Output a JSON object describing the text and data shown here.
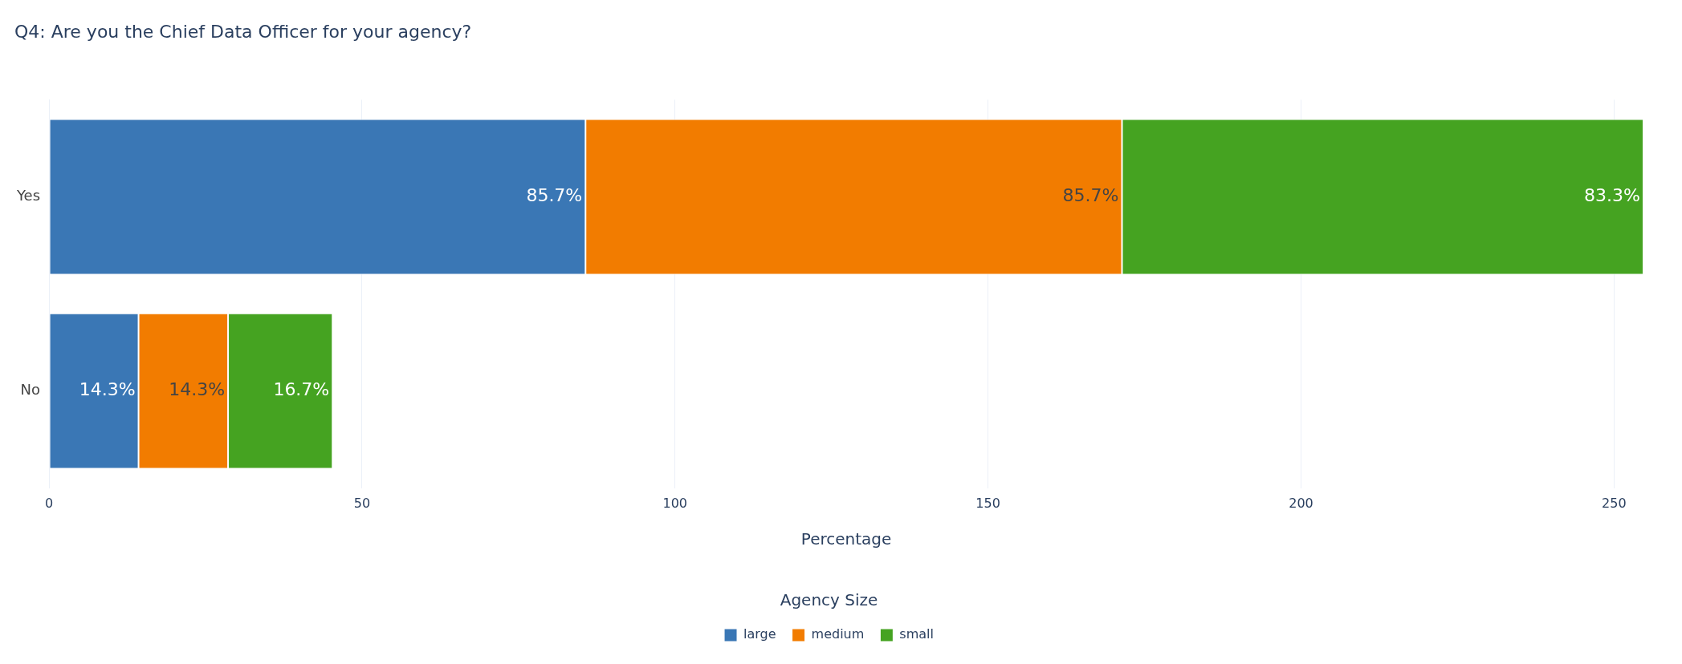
{
  "chart_data": {
    "type": "bar",
    "orientation": "horizontal",
    "stacked": true,
    "title": "Q4: Are you the Chief Data Officer for your agency?",
    "xlabel": "Percentage",
    "legend_title": "Agency Size",
    "legend": "bottom",
    "grid": "x",
    "categories": [
      "Yes",
      "No"
    ],
    "series": [
      {
        "name": "large",
        "color": "#3a77b5",
        "values": [
          85.7,
          14.3
        ],
        "value_labels": [
          "85.7%",
          "14.3%"
        ]
      },
      {
        "name": "medium",
        "color": "#f27c00",
        "values": [
          85.7,
          14.3
        ],
        "value_labels": [
          "85.7%",
          "14.3%"
        ]
      },
      {
        "name": "small",
        "color": "#45a321",
        "values": [
          83.3,
          16.7
        ],
        "value_labels": [
          "83.3%",
          "16.7%"
        ]
      }
    ],
    "xlim": [
      0,
      254.7
    ],
    "xticks": [
      0,
      50,
      100,
      150,
      200,
      250
    ]
  }
}
